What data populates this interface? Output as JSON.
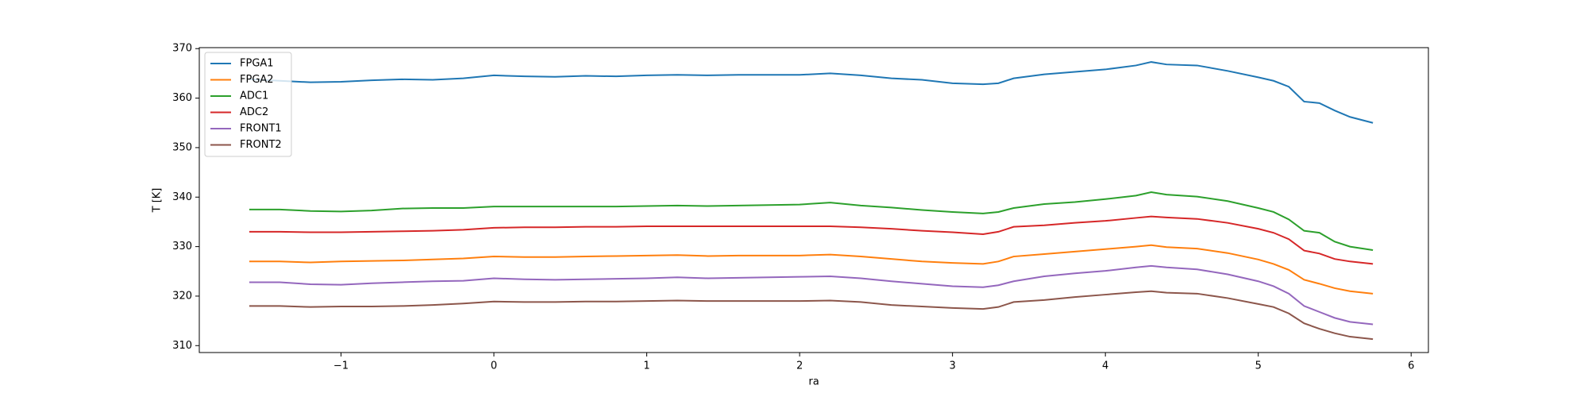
{
  "chart_data": {
    "type": "line",
    "xlabel": "ra",
    "ylabel": "T [K]",
    "x": [
      -1.6,
      -1.4,
      -1.2,
      -1.0,
      -0.8,
      -0.6,
      -0.4,
      -0.2,
      0,
      0.2,
      0.4,
      0.6,
      0.8,
      1.0,
      1.2,
      1.4,
      1.6,
      1.8,
      2.0,
      2.2,
      2.4,
      2.6,
      2.8,
      3.0,
      3.2,
      3.3,
      3.4,
      3.6,
      3.8,
      4.0,
      4.2,
      4.3,
      4.4,
      4.6,
      4.8,
      5.0,
      5.1,
      5.2,
      5.3,
      5.4,
      5.5,
      5.6,
      5.75
    ],
    "series": [
      {
        "name": "FPGA1",
        "color": "#1f77b4",
        "values": [
          363.8,
          363.5,
          363.2,
          363.3,
          363.6,
          363.8,
          363.7,
          364.0,
          364.6,
          364.4,
          364.3,
          364.5,
          364.4,
          364.6,
          364.7,
          364.6,
          364.7,
          364.7,
          364.7,
          365.0,
          364.6,
          364.0,
          363.7,
          363.0,
          362.8,
          363.0,
          364.0,
          364.8,
          365.3,
          365.8,
          366.6,
          367.3,
          366.8,
          366.6,
          365.5,
          364.2,
          363.5,
          362.3,
          359.3,
          359.0,
          357.5,
          356.2,
          355.0
        ]
      },
      {
        "name": "FPGA2",
        "color": "#ff7f0e",
        "values": [
          327.0,
          327.0,
          326.8,
          327.0,
          327.1,
          327.2,
          327.4,
          327.6,
          328.0,
          327.9,
          327.9,
          328.0,
          328.1,
          328.2,
          328.3,
          328.1,
          328.2,
          328.2,
          328.2,
          328.4,
          328.0,
          327.5,
          327.0,
          326.7,
          326.5,
          327.0,
          328.0,
          328.5,
          329.0,
          329.5,
          330.0,
          330.3,
          329.9,
          329.6,
          328.7,
          327.4,
          326.5,
          325.3,
          323.3,
          322.5,
          321.6,
          321.0,
          320.5
        ]
      },
      {
        "name": "ADC1",
        "color": "#2ca02c",
        "values": [
          337.5,
          337.5,
          337.2,
          337.1,
          337.3,
          337.7,
          337.8,
          337.8,
          338.1,
          338.1,
          338.1,
          338.1,
          338.1,
          338.2,
          338.3,
          338.2,
          338.3,
          338.4,
          338.5,
          338.9,
          338.3,
          337.9,
          337.4,
          337.0,
          336.7,
          337.0,
          337.8,
          338.6,
          339.0,
          339.6,
          340.3,
          341.0,
          340.5,
          340.1,
          339.2,
          337.8,
          337.0,
          335.5,
          333.2,
          332.8,
          331.0,
          330.0,
          329.3
        ]
      },
      {
        "name": "ADC2",
        "color": "#d62728",
        "values": [
          333.0,
          333.0,
          332.9,
          332.9,
          333.0,
          333.1,
          333.2,
          333.4,
          333.8,
          333.9,
          333.9,
          334.0,
          334.0,
          334.1,
          334.1,
          334.1,
          334.1,
          334.1,
          334.1,
          334.1,
          333.9,
          333.6,
          333.2,
          332.9,
          332.5,
          333.0,
          334.0,
          334.3,
          334.8,
          335.2,
          335.8,
          336.1,
          335.9,
          335.6,
          334.8,
          333.6,
          332.8,
          331.5,
          329.2,
          328.6,
          327.5,
          327.0,
          326.5
        ]
      },
      {
        "name": "FRONT1",
        "color": "#9467bd",
        "values": [
          322.8,
          322.8,
          322.4,
          322.3,
          322.6,
          322.8,
          323.0,
          323.1,
          323.6,
          323.4,
          323.3,
          323.4,
          323.5,
          323.6,
          323.8,
          323.6,
          323.7,
          323.8,
          323.9,
          324.0,
          323.6,
          323.0,
          322.5,
          322.0,
          321.8,
          322.2,
          323.0,
          324.0,
          324.6,
          325.1,
          325.8,
          326.1,
          325.8,
          325.4,
          324.4,
          323.0,
          322.0,
          320.5,
          318.0,
          316.8,
          315.6,
          314.8,
          314.3
        ]
      },
      {
        "name": "FRONT2",
        "color": "#8c564b",
        "values": [
          318.0,
          318.0,
          317.8,
          317.9,
          317.9,
          318.0,
          318.2,
          318.5,
          318.9,
          318.8,
          318.8,
          318.9,
          318.9,
          319.0,
          319.1,
          319.0,
          319.0,
          319.0,
          319.0,
          319.1,
          318.8,
          318.2,
          317.9,
          317.6,
          317.4,
          317.8,
          318.8,
          319.2,
          319.8,
          320.3,
          320.8,
          321.0,
          320.7,
          320.5,
          319.6,
          318.4,
          317.8,
          316.5,
          314.5,
          313.4,
          312.5,
          311.8,
          311.3
        ]
      }
    ],
    "xlim": [
      -1.927,
      6.113
    ],
    "ylim": [
      308.6,
      370.2
    ],
    "xticks": [
      {
        "value": -1,
        "label": "−1"
      },
      0,
      1,
      2,
      3,
      4,
      5,
      6
    ],
    "yticks": [
      310,
      320,
      330,
      340,
      350,
      360,
      370
    ],
    "grid": false,
    "legend": "upper left"
  }
}
